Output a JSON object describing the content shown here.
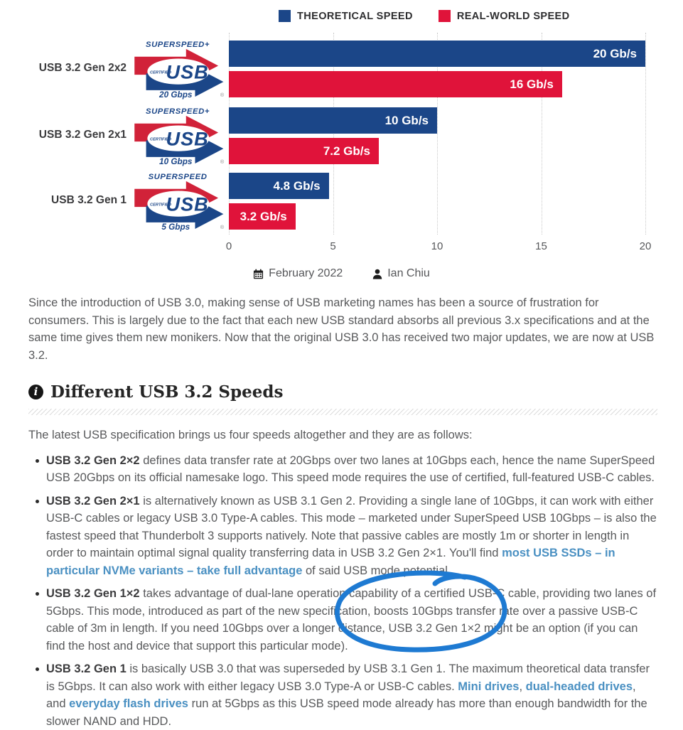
{
  "colors": {
    "bar_blue": "#1b4688",
    "bar_red": "#e0133a",
    "logo_blue": "#1b4688",
    "logo_red": "#d12239",
    "link_blue": "#4a90c2",
    "annotation_blue": "#1e7ad2"
  },
  "legend": [
    {
      "label": "THEORETICAL SPEED",
      "color": "#1b4688"
    },
    {
      "label": "REAL-WORLD SPEED",
      "color": "#e0133a"
    }
  ],
  "chart_data": {
    "type": "bar",
    "orientation": "horizontal",
    "categories": [
      "USB 3.2 Gen 2x2",
      "USB 3.2 Gen 2x1",
      "USB 3.2 Gen 1"
    ],
    "series": [
      {
        "name": "THEORETICAL SPEED",
        "color": "#1b4688",
        "values": [
          20,
          10,
          4.8
        ],
        "labels": [
          "20 Gb/s",
          "10 Gb/s",
          "4.8 Gb/s"
        ]
      },
      {
        "name": "REAL-WORLD SPEED",
        "color": "#e0133a",
        "values": [
          16,
          7.2,
          3.2
        ],
        "labels": [
          "16 Gb/s",
          "7.2 Gb/s",
          "3.2 Gb/s"
        ]
      }
    ],
    "xlim": [
      0,
      20
    ],
    "ticks": [
      0,
      5,
      10,
      15,
      20
    ],
    "grid": "dotted-vertical",
    "legend_position": "top",
    "logos": [
      {
        "superspeed": "SUPERSPEED+",
        "certified": "CERTIFIED",
        "usb": "USB",
        "speed": "20 Gbps",
        "reg": "®"
      },
      {
        "superspeed": "SUPERSPEED+",
        "certified": "CERTIFIED",
        "usb": "USB",
        "speed": "10 Gbps",
        "reg": "®"
      },
      {
        "superspeed": "SUPERSPEED",
        "certified": "CERTIFIED",
        "usb": "USB",
        "speed": "5 Gbps",
        "reg": "®"
      }
    ]
  },
  "meta": {
    "date": "February 2022",
    "author": "Ian Chiu"
  },
  "intro_paragraph": "Since the introduction of USB 3.0, making sense of USB marketing names has been a source of frustration for consumers. This is largely due to the fact that each new USB standard absorbs all previous 3.x specifications and at the same time gives them new monikers.  Now that the original USB 3.0 has received two major updates, we are now at USB 3.2.",
  "section": {
    "title": "Different USB 3.2 Speeds",
    "icon": "i"
  },
  "lead_text": "The latest USB specification brings us four speeds altogether and they are as follows:",
  "bullets": [
    [
      {
        "t": "USB 3.2 Gen 2×2",
        "s": "b"
      },
      {
        "t": " defines data transfer rate at 20Gbps over two lanes at 10Gbps each, hence the name SuperSpeed USB 20Gbps on its official namesake logo.  This speed mode requires the use of certified, full-featured USB-C cables.",
        "s": "n"
      }
    ],
    [
      {
        "t": "USB 3.2 Gen 2×1",
        "s": "b"
      },
      {
        "t": " is alternatively known as USB 3.1 Gen 2.  Providing a single lane of 10Gbps, it can work with either USB-C cables or legacy USB 3.0 Type-A cables.   This mode – marketed under SuperSpeed USB 10Gbps – is also the fastest speed that Thunderbolt 3 supports natively.  Note that passive cables are mostly 1m or shorter in length in order to maintain optimal signal quality transferring data in USB 3.2 Gen 2×1. You'll find ",
        "s": "n"
      },
      {
        "t": "most USB SSDs – in particular NVMe variants – take full advantage",
        "s": "link"
      },
      {
        "t": " of said USB mode potential.",
        "s": "n"
      }
    ],
    [
      {
        "t": "USB 3.2 Gen 1×2",
        "s": "b"
      },
      {
        "t": " takes advantage of dual-lane operation capability of a certified USB-C cable, providing two lanes of 5Gbps.  This mode, introduced as part of the new specification, boosts 10Gbps transfer rate over a passive USB-C cable of 3m in length.  If you need 10Gbps over a longer distance, USB 3.2 Gen 1×2 might be an option (if you can find the host and device that support this particular mode).",
        "s": "n"
      }
    ],
    [
      {
        "t": "USB 3.2 Gen 1",
        "s": "b"
      },
      {
        "t": " is basically USB 3.0 that was superseded by USB 3.1 Gen 1.  The maximum theoretical data transfer is 5Gbps.  It can also work with either legacy USB 3.0 Type-A or USB-C cables. ",
        "s": "n"
      },
      {
        "t": "Mini drives",
        "s": "link"
      },
      {
        "t": ", ",
        "s": "n"
      },
      {
        "t": "dual-headed drives",
        "s": "link"
      },
      {
        "t": ", and ",
        "s": "n"
      },
      {
        "t": "everyday flash drives",
        "s": "link"
      },
      {
        "t": " run at 5Gbps as this USB speed mode already has more than enough bandwidth for the slower NAND and HDD.",
        "s": "n"
      }
    ]
  ]
}
